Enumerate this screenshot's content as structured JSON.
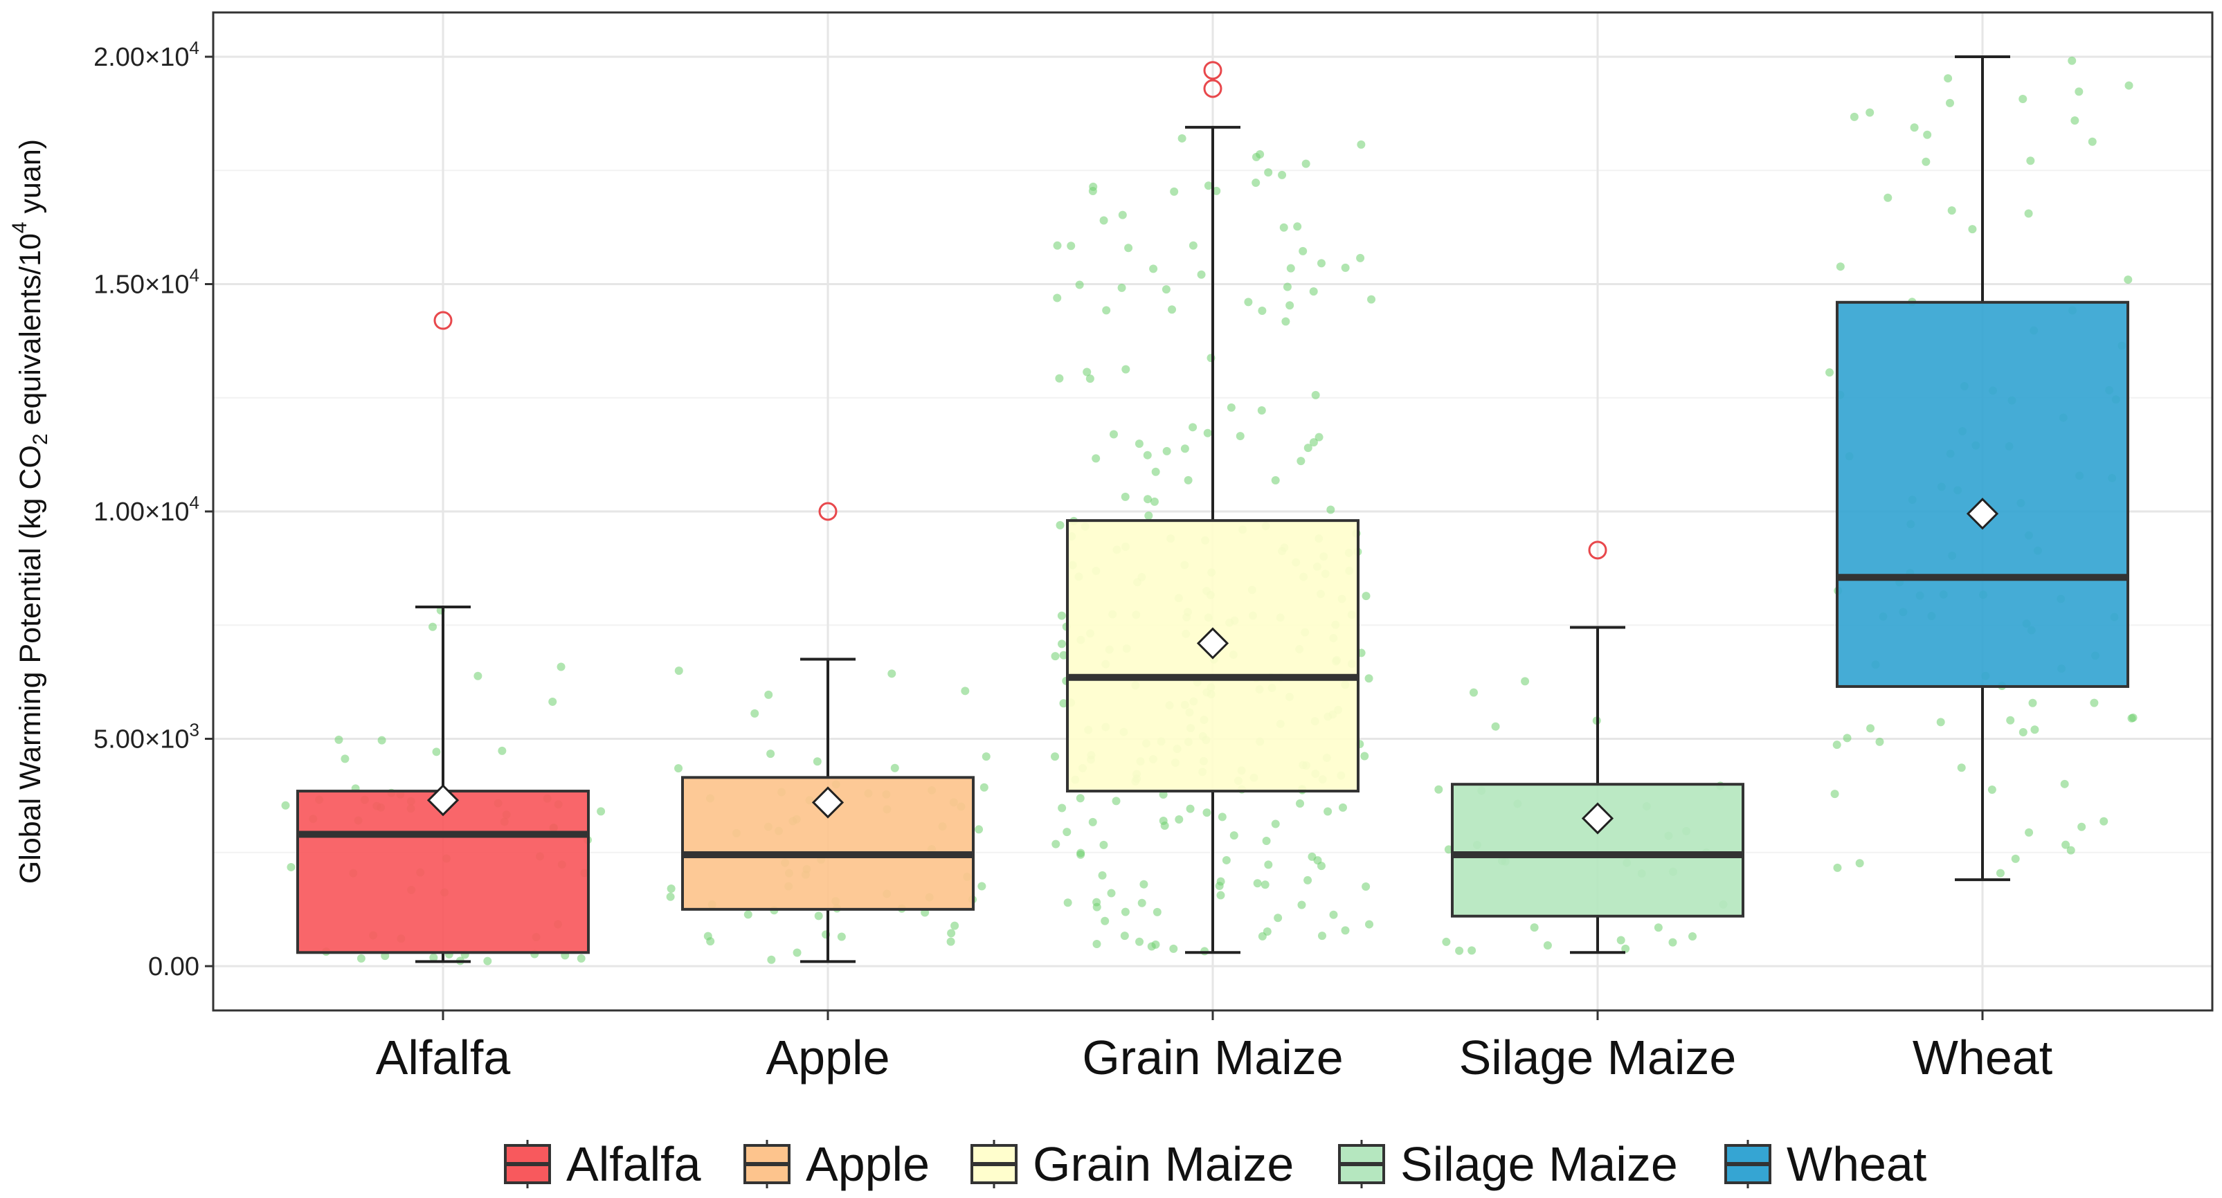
{
  "chart_data": {
    "type": "box",
    "title": "",
    "xlabel": "",
    "ylabel": {
      "prefix": "Global Warming Potential (kg CO",
      "sub": "2",
      "middle": " equivalents/10",
      "sup": "4",
      "suffix": " yuan)"
    },
    "ylim": [
      -950,
      20950
    ],
    "y_ticks": [
      {
        "value": 0,
        "label": "0.00",
        "mantissa": "0.00",
        "exponent": ""
      },
      {
        "value": 5000,
        "label": "5.00×10³",
        "mantissa": "5.00×10",
        "exponent": "3"
      },
      {
        "value": 10000,
        "label": "1.00×10⁴",
        "mantissa": "1.00×10",
        "exponent": "4"
      },
      {
        "value": 15000,
        "label": "1.50×10⁴",
        "mantissa": "1.50×10",
        "exponent": "4"
      },
      {
        "value": 20000,
        "label": "2.00×10⁴",
        "mantissa": "2.00×10",
        "exponent": "4"
      }
    ],
    "y_minor_ticks": [
      2500,
      7500,
      12500,
      17500
    ],
    "grid": true,
    "legend_position": "bottom",
    "jitter_color": "#6fcf6f",
    "outlier_color": "#e8484c",
    "mean_marker": "white diamond",
    "categories": [
      "Alfalfa",
      "Apple",
      "Grain Maize",
      "Silage Maize",
      "Wheat"
    ],
    "series": [
      {
        "name": "Alfalfa",
        "color": "#f8595d",
        "whisker_low": 100,
        "q1": 300,
        "median": 2900,
        "q3": 3850,
        "whisker_high": 7900,
        "mean": 3650,
        "outliers": [
          14200
        ],
        "n_points": 55
      },
      {
        "name": "Apple",
        "color": "#fdc48d",
        "whisker_low": 100,
        "q1": 1250,
        "median": 2450,
        "q3": 4150,
        "whisker_high": 6750,
        "mean": 3600,
        "outliers": [
          10000
        ],
        "n_points": 60
      },
      {
        "name": "Grain Maize",
        "color": "#fffecd",
        "whisker_low": 300,
        "q1": 3850,
        "median": 6350,
        "q3": 9800,
        "whisker_high": 18450,
        "mean": 7100,
        "outliers": [
          19300,
          19700
        ],
        "n_points": 260
      },
      {
        "name": "Silage Maize",
        "color": "#b5e7bf",
        "whisker_low": 300,
        "q1": 1100,
        "median": 2450,
        "q3": 4000,
        "whisker_high": 7450,
        "mean": 3250,
        "outliers": [
          9150
        ],
        "n_points": 30
      },
      {
        "name": "Wheat",
        "color": "#35a5d3",
        "whisker_low": 1900,
        "q1": 6150,
        "median": 8550,
        "q3": 14600,
        "whisker_high": 20000,
        "mean": 9950,
        "outliers": [],
        "n_points": 90
      }
    ]
  }
}
